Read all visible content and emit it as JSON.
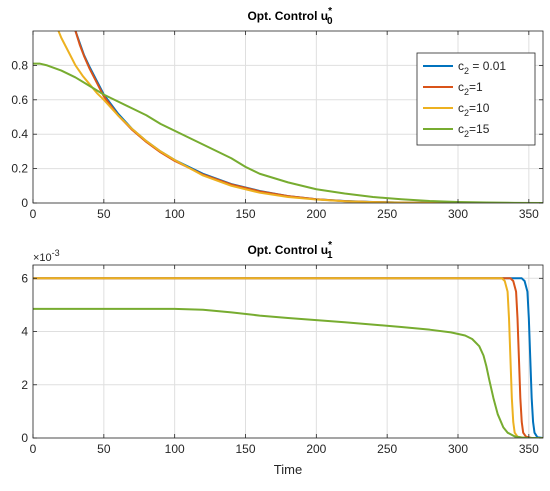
{
  "chart_data": [
    {
      "type": "line",
      "title": "Opt. Control u",
      "title_sub": "0",
      "title_sup": "*",
      "xlabel": "",
      "ylabel": "",
      "xlim": [
        0,
        360
      ],
      "ylim": [
        0,
        1.0
      ],
      "xticks": [
        0,
        50,
        100,
        150,
        200,
        250,
        300,
        350
      ],
      "yticks": [
        0,
        0.2,
        0.4,
        0.6,
        0.8
      ],
      "ytick_labels": [
        "0",
        "0.2",
        "0.4",
        "0.6",
        "0.8"
      ],
      "grid": true,
      "legend": {
        "placement": "top-right",
        "entries": [
          {
            "pre": "c",
            "sub": "2",
            "post": " = 0.01",
            "color": "#0072BD"
          },
          {
            "pre": "c",
            "sub": "2",
            "post": "=1",
            "color": "#D95319"
          },
          {
            "pre": "c",
            "sub": "2",
            "post": "=10",
            "color": "#EDB120"
          },
          {
            "pre": "c",
            "sub": "2",
            "post": "=15",
            "color": "#77AC30"
          }
        ]
      },
      "series": [
        {
          "color": "#0072BD",
          "x": [
            30,
            33,
            36,
            40,
            45,
            50,
            60,
            70,
            80,
            90,
            100,
            120,
            140,
            160,
            180,
            200,
            220,
            240,
            260,
            280,
            300,
            330,
            360
          ],
          "y": [
            1.0,
            0.93,
            0.86,
            0.79,
            0.71,
            0.63,
            0.52,
            0.43,
            0.36,
            0.3,
            0.25,
            0.17,
            0.11,
            0.07,
            0.04,
            0.022,
            0.012,
            0.006,
            0.003,
            0.0012,
            0.0005,
            0.0001,
            0.0
          ]
        },
        {
          "color": "#D95319",
          "x": [
            30,
            33,
            36,
            40,
            45,
            50,
            60,
            70,
            80,
            90,
            100,
            120,
            140,
            160,
            180,
            200,
            220,
            240,
            260,
            280,
            300,
            330,
            360
          ],
          "y": [
            1.0,
            0.92,
            0.855,
            0.78,
            0.7,
            0.62,
            0.51,
            0.425,
            0.355,
            0.295,
            0.245,
            0.165,
            0.108,
            0.068,
            0.04,
            0.022,
            0.011,
            0.005,
            0.002,
            0.0008,
            0.0003,
            0.0001,
            0.0
          ]
        },
        {
          "color": "#EDB120",
          "x": [
            18,
            20,
            25,
            30,
            35,
            40,
            45,
            50,
            60,
            70,
            80,
            90,
            100,
            120,
            140,
            160,
            180,
            200,
            220,
            240,
            260,
            280,
            300,
            330,
            360
          ],
          "y": [
            1.0,
            0.96,
            0.88,
            0.8,
            0.74,
            0.69,
            0.64,
            0.6,
            0.51,
            0.43,
            0.36,
            0.3,
            0.25,
            0.16,
            0.1,
            0.06,
            0.035,
            0.02,
            0.01,
            0.005,
            0.002,
            0.0008,
            0.0003,
            0.0,
            0.0
          ]
        },
        {
          "color": "#77AC30",
          "x": [
            0,
            5,
            10,
            20,
            30,
            40,
            50,
            60,
            70,
            80,
            90,
            100,
            110,
            120,
            130,
            140,
            150,
            160,
            180,
            200,
            220,
            240,
            260,
            280,
            300,
            320,
            340,
            360
          ],
          "y": [
            0.81,
            0.81,
            0.8,
            0.77,
            0.73,
            0.68,
            0.63,
            0.59,
            0.55,
            0.51,
            0.46,
            0.42,
            0.38,
            0.34,
            0.3,
            0.26,
            0.21,
            0.17,
            0.12,
            0.08,
            0.055,
            0.035,
            0.022,
            0.012,
            0.006,
            0.003,
            0.001,
            0.0
          ]
        }
      ]
    },
    {
      "type": "line",
      "title": "Opt. Control u",
      "title_sub": "1",
      "title_sup": "*",
      "xlabel": "Time",
      "ylabel": "",
      "exponent_base": "×10",
      "exponent": "-3",
      "xlim": [
        0,
        360
      ],
      "ylim": [
        0,
        0.0065
      ],
      "xticks": [
        0,
        50,
        100,
        150,
        200,
        250,
        300,
        350
      ],
      "yticks": [
        0,
        0.002,
        0.004,
        0.006
      ],
      "ytick_labels": [
        "0",
        "2",
        "4",
        "6"
      ],
      "grid": true,
      "series": [
        {
          "color": "#0072BD",
          "x": [
            0,
            345,
            347,
            349,
            350,
            351,
            352,
            353,
            354,
            356,
            360
          ],
          "y": [
            0.006,
            0.006,
            0.0059,
            0.0055,
            0.0045,
            0.003,
            0.0015,
            0.0006,
            0.0002,
            3e-05,
            0.0
          ]
        },
        {
          "color": "#D95319",
          "x": [
            0,
            337,
            339,
            341,
            342,
            343,
            344,
            345,
            346,
            348,
            352,
            360
          ],
          "y": [
            0.006,
            0.006,
            0.0059,
            0.0055,
            0.0045,
            0.003,
            0.0015,
            0.0006,
            0.0002,
            5e-05,
            0.0,
            0.0
          ]
        },
        {
          "color": "#EDB120",
          "x": [
            0,
            331,
            333,
            335,
            336,
            337,
            338,
            339,
            340,
            342,
            346,
            360
          ],
          "y": [
            0.006,
            0.006,
            0.0059,
            0.0055,
            0.0045,
            0.003,
            0.0015,
            0.0006,
            0.0002,
            5e-05,
            0.0,
            0.0
          ]
        },
        {
          "color": "#77AC30",
          "x": [
            0,
            50,
            100,
            120,
            140,
            160,
            180,
            200,
            220,
            240,
            260,
            280,
            295,
            305,
            310,
            315,
            318,
            320,
            322,
            325,
            328,
            332,
            335,
            340,
            345,
            350,
            360
          ],
          "y": [
            0.00485,
            0.00485,
            0.00485,
            0.00482,
            0.00472,
            0.0046,
            0.00451,
            0.00443,
            0.00435,
            0.00426,
            0.00417,
            0.00407,
            0.00397,
            0.00385,
            0.00372,
            0.00345,
            0.0031,
            0.0027,
            0.0022,
            0.0015,
            0.0009,
            0.0004,
            0.0002,
            6e-05,
            2e-05,
            0.0,
            0.0
          ]
        }
      ]
    }
  ]
}
